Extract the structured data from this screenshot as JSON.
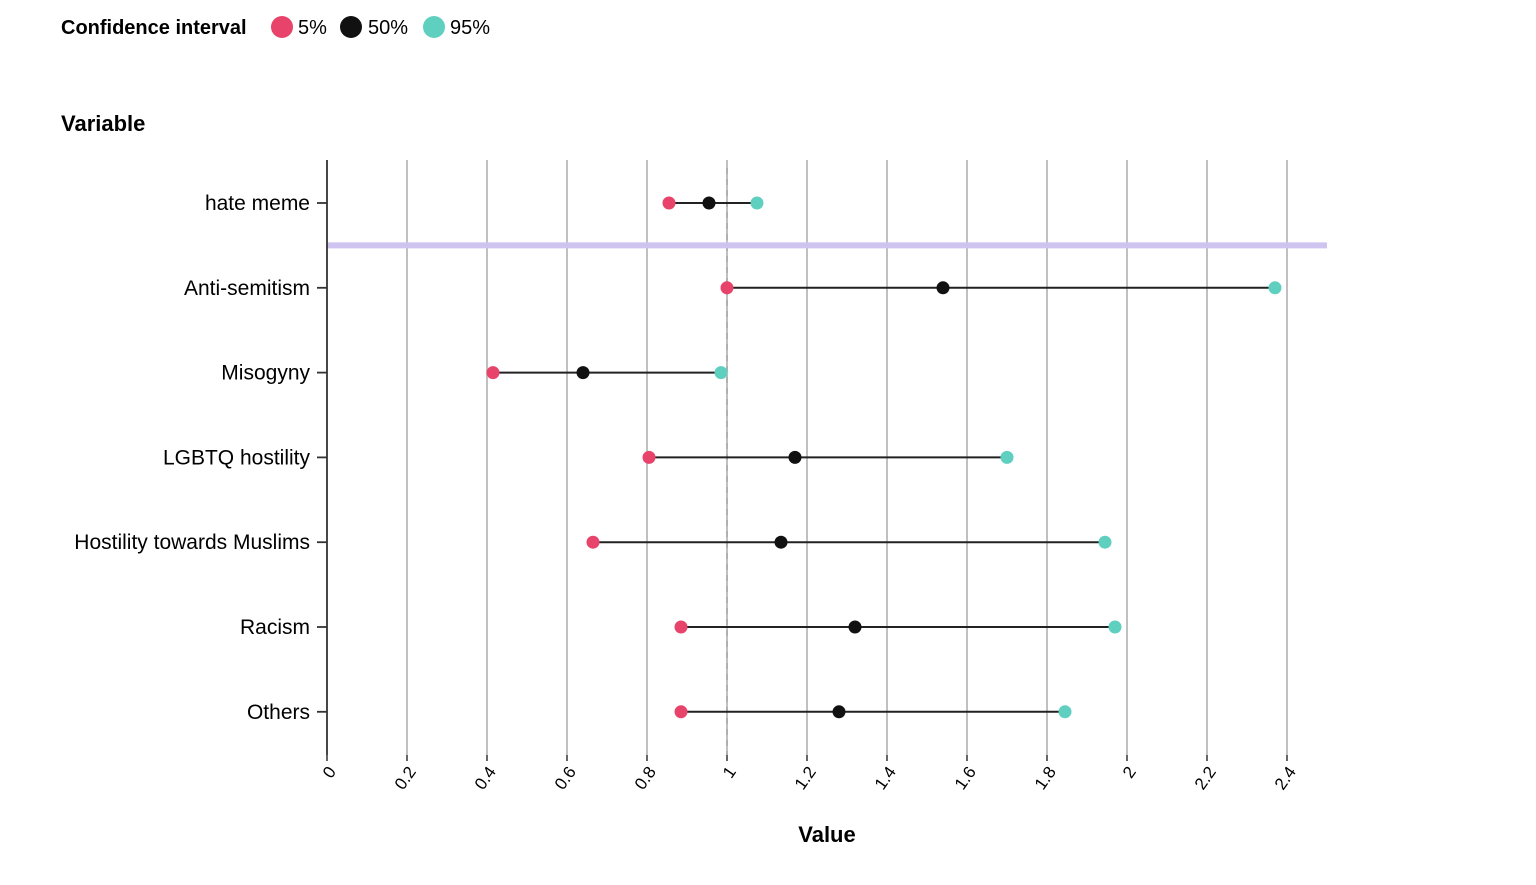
{
  "legend": {
    "title": "Confidence interval",
    "items": [
      {
        "label": "5%",
        "color": "#e8436a"
      },
      {
        "label": "50%",
        "color": "#111111"
      },
      {
        "label": "95%",
        "color": "#5fcfc0"
      }
    ]
  },
  "chart_data": {
    "type": "dot-interval",
    "ylabel": "Variable",
    "xlabel": "Value",
    "xlim": [
      0,
      2.5
    ],
    "xticks": [
      0,
      0.2,
      0.4,
      0.6,
      0.8,
      1,
      1.2,
      1.4,
      1.6,
      1.8,
      2,
      2.2,
      2.4
    ],
    "xtick_labels": [
      "0",
      "0.2",
      "0.4",
      "0.6",
      "0.8",
      "1",
      "1.2",
      "1.4",
      "1.6",
      "1.8",
      "2",
      "2.2",
      "2.4"
    ],
    "reference_line": 1,
    "grid": true,
    "separator_after_row": 0,
    "categories": [
      "hate meme",
      "Anti-semitism",
      "Misogyny",
      "LGBTQ hostility",
      "Hostility towards Muslims",
      "Racism",
      "Others"
    ],
    "series": [
      {
        "name": "5%",
        "color": "#e8436a",
        "values": [
          0.855,
          1.0,
          0.415,
          0.805,
          0.665,
          0.885,
          0.885
        ]
      },
      {
        "name": "50%",
        "color": "#111111",
        "values": [
          0.955,
          1.54,
          0.64,
          1.17,
          1.135,
          1.32,
          1.28
        ]
      },
      {
        "name": "95%",
        "color": "#5fcfc0",
        "values": [
          1.075,
          2.37,
          0.985,
          1.7,
          1.945,
          1.97,
          1.845
        ]
      }
    ]
  }
}
